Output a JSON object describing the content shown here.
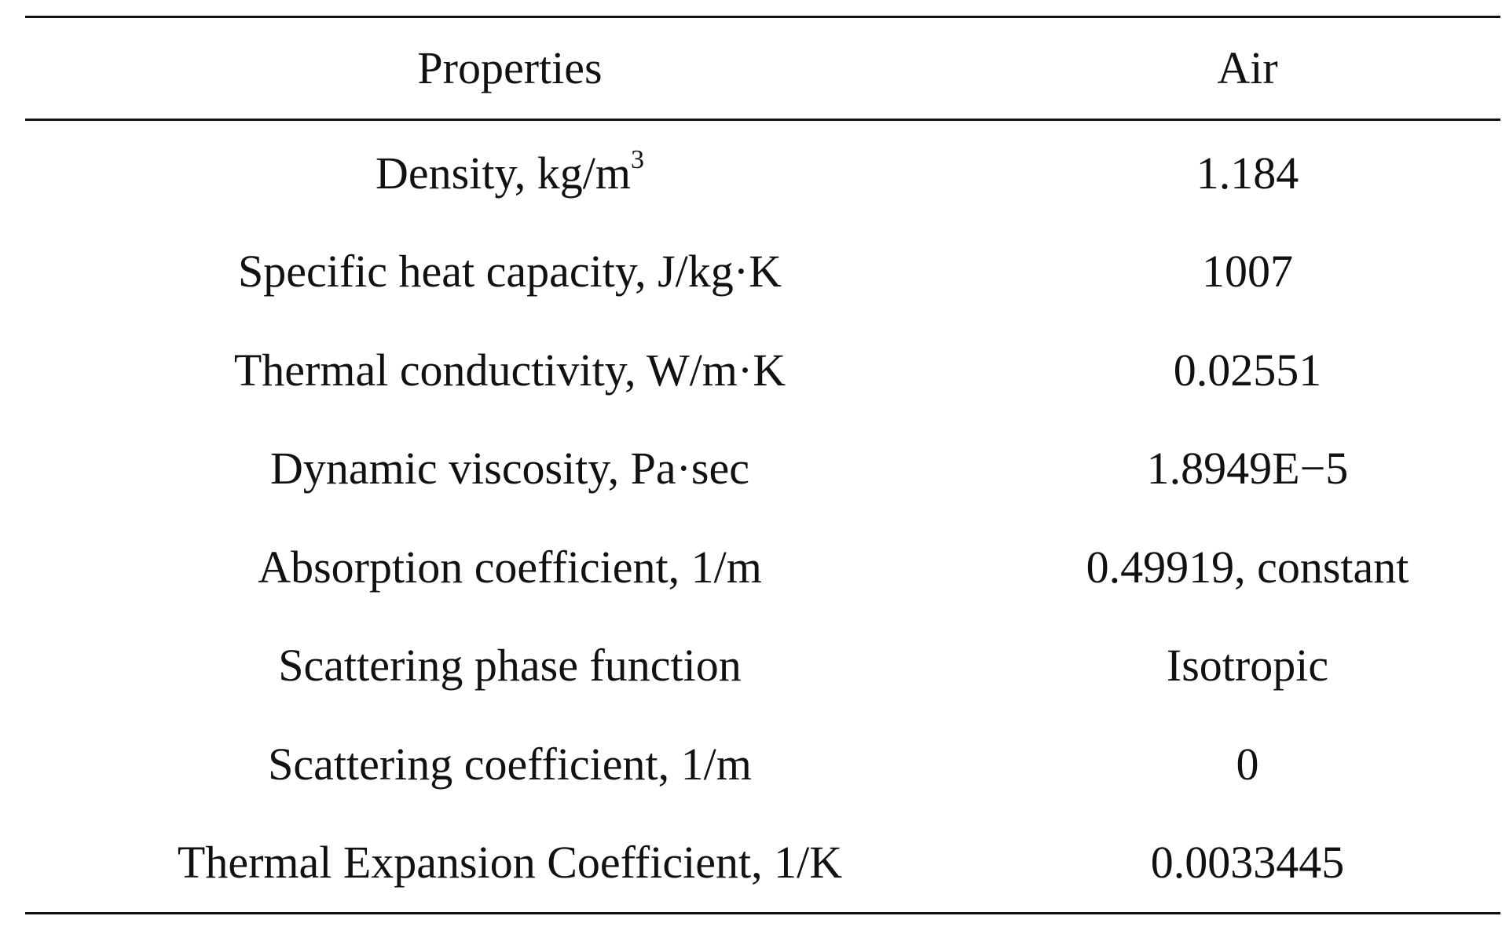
{
  "table": {
    "headers": {
      "property": "Properties",
      "air": "Air"
    },
    "rows": [
      {
        "property": "Density, kg/m",
        "superscript": "3",
        "value": "1.184"
      },
      {
        "property": "Specific heat capacity, J/kg·K",
        "value": "1007"
      },
      {
        "property": "Thermal conductivity, W/m·K",
        "value": "0.02551"
      },
      {
        "property": "Dynamic viscosity, Pa·sec",
        "value": "1.8949E−5"
      },
      {
        "property": "Absorption coefficient, 1/m",
        "value": "0.49919, constant"
      },
      {
        "property": "Scattering phase function",
        "value": "Isotropic"
      },
      {
        "property": "Scattering coefficient, 1/m",
        "value": "0"
      },
      {
        "property": "Thermal Expansion Coefficient, 1/K",
        "value": "0.0033445"
      }
    ]
  }
}
